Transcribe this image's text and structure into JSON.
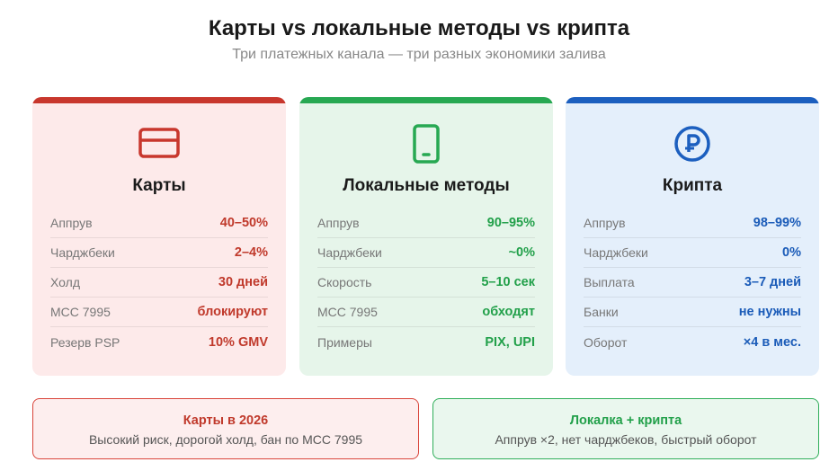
{
  "header": {
    "title": "Карты vs локальные методы vs крипта",
    "subtitle": "Три платежных канала — три разных экономики залива"
  },
  "colors": {
    "red": "#c0392b",
    "green": "#22a04a",
    "blue": "#1a5bb8"
  },
  "cards": [
    {
      "icon": "credit-card-icon",
      "title": "Карты",
      "rows": [
        {
          "label": "Аппрув",
          "value": "40–50%"
        },
        {
          "label": "Чарджбеки",
          "value": "2–4%"
        },
        {
          "label": "Холд",
          "value": "30 дней"
        },
        {
          "label": "MCC 7995",
          "value": "блокируют"
        },
        {
          "label": "Резерв PSP",
          "value": "10% GMV"
        }
      ]
    },
    {
      "icon": "smartphone-icon",
      "title": "Локальные методы",
      "rows": [
        {
          "label": "Аппрув",
          "value": "90–95%"
        },
        {
          "label": "Чарджбеки",
          "value": "~0%"
        },
        {
          "label": "Скорость",
          "value": "5–10 сек"
        },
        {
          "label": "MCC 7995",
          "value": "обходят"
        },
        {
          "label": "Примеры",
          "value": "PIX, UPI"
        }
      ]
    },
    {
      "icon": "crypto-coin-icon",
      "title": "Крипта",
      "rows": [
        {
          "label": "Аппрув",
          "value": "98–99%"
        },
        {
          "label": "Чарджбеки",
          "value": "0%"
        },
        {
          "label": "Выплата",
          "value": "3–7 дней"
        },
        {
          "label": "Банки",
          "value": "не нужны"
        },
        {
          "label": "Оборот",
          "value": "×4 в мес."
        }
      ]
    }
  ],
  "summary": [
    {
      "title": "Карты в 2026",
      "text": "Высокий риск, дорогой холд, бан по MCC 7995"
    },
    {
      "title": "Локалка + крипта",
      "text": "Аппрув ×2, нет чарджбеков, быстрый оборот"
    }
  ]
}
